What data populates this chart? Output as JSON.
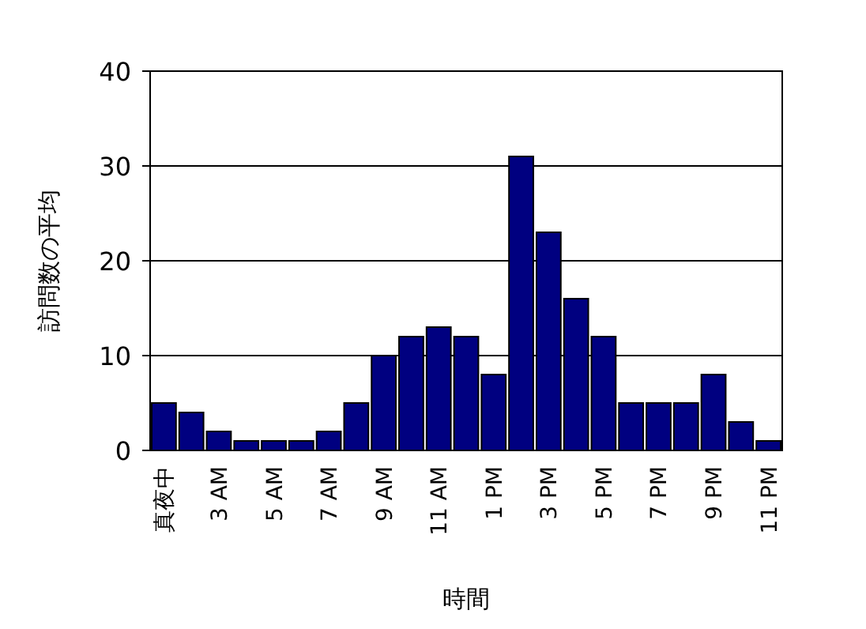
{
  "chart_data": {
    "type": "bar",
    "xlabel": "時間",
    "ylabel": "訪問数の平均",
    "categories": [
      "真夜中",
      null,
      "3 AM",
      null,
      "5 AM",
      null,
      "7 AM",
      null,
      "9 AM",
      null,
      "11 AM",
      null,
      "1 PM",
      null,
      "3 PM",
      null,
      "5 PM",
      null,
      "7 PM",
      null,
      "9 PM",
      null,
      "11 PM"
    ],
    "values": [
      5,
      4,
      2,
      1,
      1,
      1,
      2,
      5,
      10,
      12,
      13,
      12,
      8,
      31,
      23,
      16,
      12,
      5,
      5,
      5,
      8,
      3,
      1
    ],
    "color": "#000080",
    "ylim": [
      0,
      40
    ],
    "yticks": [
      0,
      10,
      20,
      30,
      40
    ],
    "grid": "y"
  }
}
